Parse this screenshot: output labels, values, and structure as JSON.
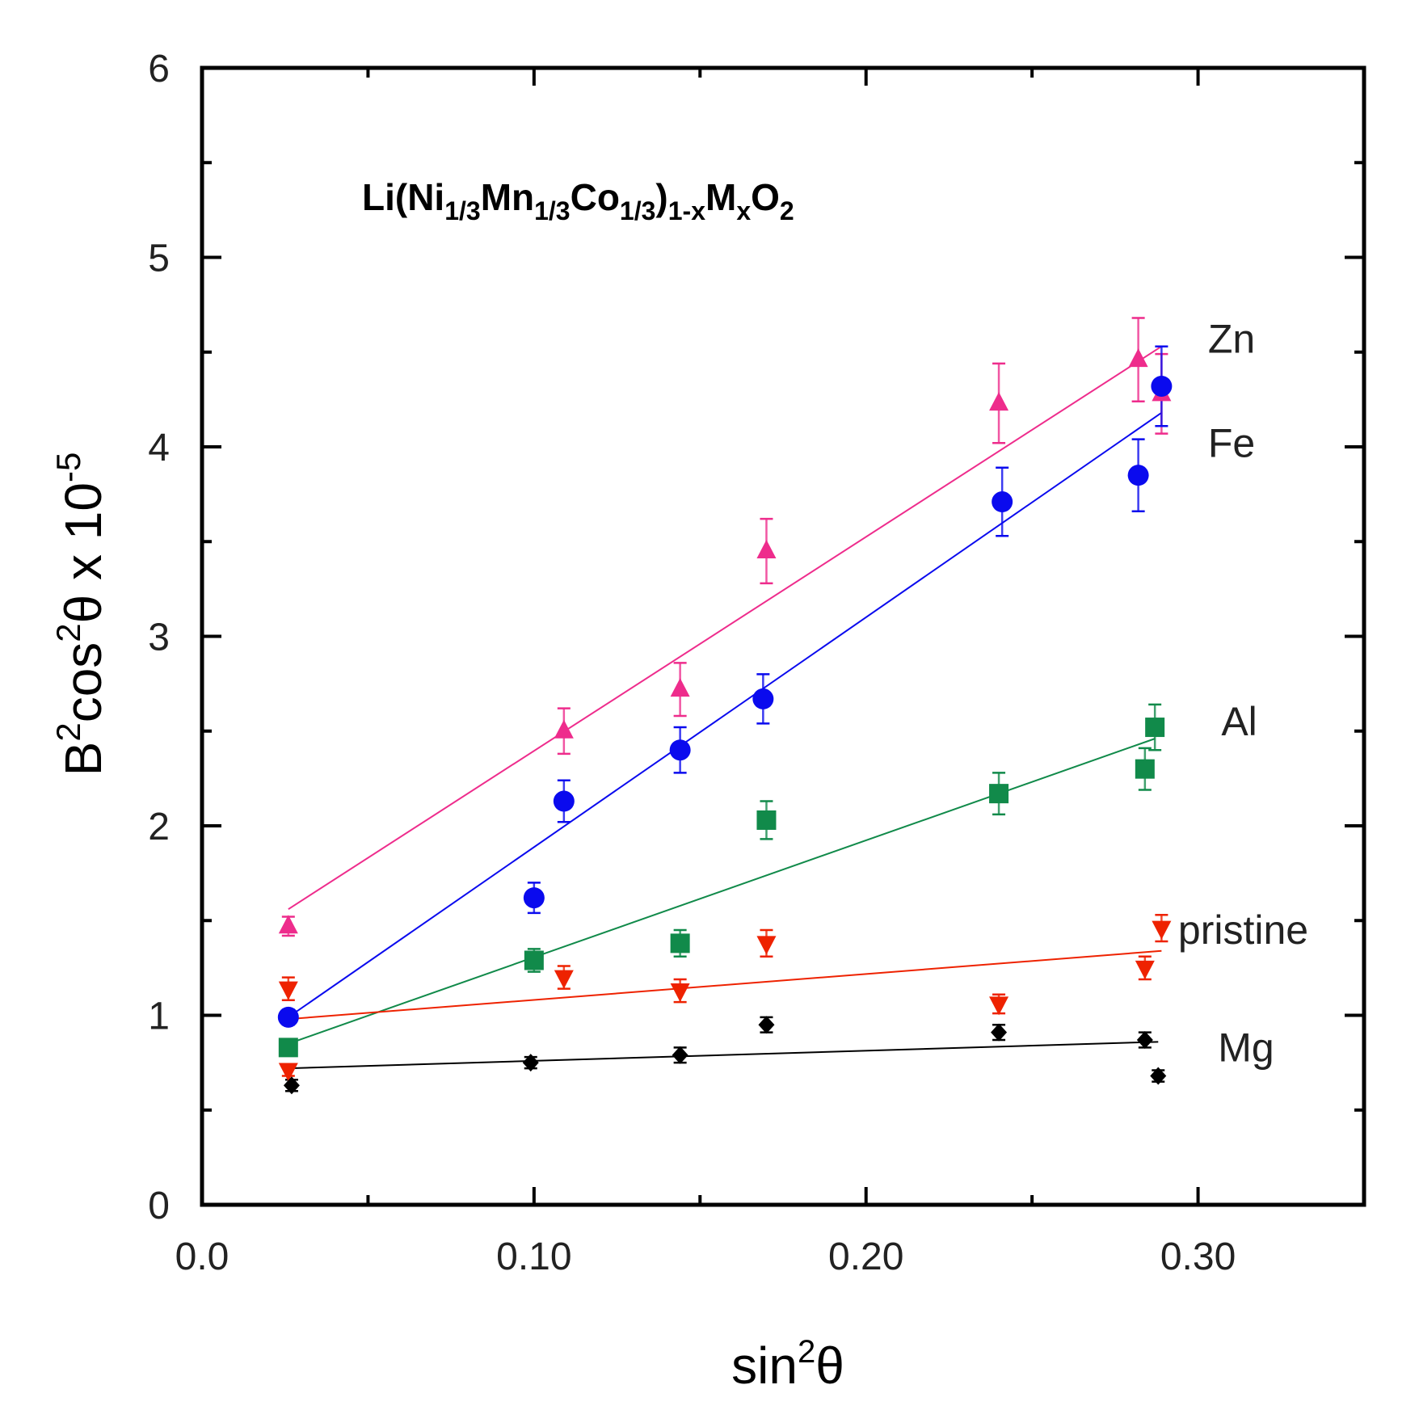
{
  "chart_data": {
    "type": "scatter",
    "title": {
      "parts": [
        {
          "text": "Li(Ni",
          "sub": false
        },
        {
          "text": "1/3",
          "sub": true
        },
        {
          "text": "Mn",
          "sub": false
        },
        {
          "text": "1/3",
          "sub": true
        },
        {
          "text": "Co",
          "sub": false
        },
        {
          "text": "1/3",
          "sub": true
        },
        {
          "text": ")",
          "sub": false
        },
        {
          "text": "1-x",
          "sub": true
        },
        {
          "text": "M",
          "sub": false
        },
        {
          "text": "x",
          "sub": true
        },
        {
          "text": "O",
          "sub": false
        },
        {
          "text": "2",
          "sub": true
        }
      ]
    },
    "xlabel": {
      "base": "sin",
      "sup": "2",
      "tail": "θ"
    },
    "ylabel": {
      "b": "B",
      "sup1": "2",
      "mid": "cos",
      "sup2": "2",
      "theta": "θ x 10",
      "sup3": "-5"
    },
    "xlim": [
      0.0,
      0.35
    ],
    "ylim": [
      0,
      6
    ],
    "x_ticks": [
      {
        "value": 0.0,
        "label": "0.0"
      },
      {
        "value": 0.1,
        "label": "0.10"
      },
      {
        "value": 0.2,
        "label": "0.20"
      },
      {
        "value": 0.3,
        "label": "0.30"
      }
    ],
    "x_minor_ticks": [
      0.05,
      0.15,
      0.25
    ],
    "y_ticks": [
      {
        "value": 0,
        "label": "0"
      },
      {
        "value": 1,
        "label": "1"
      },
      {
        "value": 2,
        "label": "2"
      },
      {
        "value": 3,
        "label": "3"
      },
      {
        "value": 4,
        "label": "4"
      },
      {
        "value": 5,
        "label": "5"
      },
      {
        "value": 6,
        "label": "6"
      }
    ],
    "y_minor_ticks": [
      0.5,
      1.5,
      2.5,
      3.5,
      4.5,
      5.5
    ],
    "series": [
      {
        "name": "Zn",
        "color": "#ee2c8c",
        "marker": "triangle-up",
        "points": [
          {
            "x": 0.026,
            "y": 1.47,
            "err": 0.05
          },
          {
            "x": 0.109,
            "y": 2.5,
            "err": 0.12
          },
          {
            "x": 0.144,
            "y": 2.72,
            "err": 0.14
          },
          {
            "x": 0.17,
            "y": 3.45,
            "err": 0.17
          },
          {
            "x": 0.24,
            "y": 4.23,
            "err": 0.21
          },
          {
            "x": 0.282,
            "y": 4.46,
            "err": 0.22
          },
          {
            "x": 0.289,
            "y": 4.28,
            "err": 0.21
          }
        ],
        "fit": [
          [
            0.026,
            1.56
          ],
          [
            0.289,
            4.53
          ]
        ]
      },
      {
        "name": "Fe",
        "color": "#0a0aee",
        "marker": "circle",
        "points": [
          {
            "x": 0.026,
            "y": 0.99,
            "err": 0.04
          },
          {
            "x": 0.1,
            "y": 1.62,
            "err": 0.08
          },
          {
            "x": 0.109,
            "y": 2.13,
            "err": 0.11
          },
          {
            "x": 0.144,
            "y": 2.4,
            "err": 0.12
          },
          {
            "x": 0.169,
            "y": 2.67,
            "err": 0.13
          },
          {
            "x": 0.241,
            "y": 3.71,
            "err": 0.18
          },
          {
            "x": 0.282,
            "y": 3.85,
            "err": 0.19
          },
          {
            "x": 0.289,
            "y": 4.32,
            "err": 0.21
          }
        ],
        "fit": [
          [
            0.026,
            0.99
          ],
          [
            0.289,
            4.18
          ]
        ]
      },
      {
        "name": "Al",
        "color": "#118a4a",
        "marker": "square",
        "points": [
          {
            "x": 0.026,
            "y": 0.83,
            "err": 0.04
          },
          {
            "x": 0.1,
            "y": 1.29,
            "err": 0.06
          },
          {
            "x": 0.144,
            "y": 1.38,
            "err": 0.07
          },
          {
            "x": 0.17,
            "y": 2.03,
            "err": 0.1
          },
          {
            "x": 0.24,
            "y": 2.17,
            "err": 0.11
          },
          {
            "x": 0.284,
            "y": 2.3,
            "err": 0.11
          },
          {
            "x": 0.287,
            "y": 2.52,
            "err": 0.12
          }
        ],
        "fit": [
          [
            0.026,
            0.85
          ],
          [
            0.287,
            2.46
          ]
        ]
      },
      {
        "name": "pristine",
        "color": "#ee2200",
        "marker": "triangle-down",
        "points": [
          {
            "x": 0.026,
            "y": 0.71,
            "err": 0.03
          },
          {
            "x": 0.026,
            "y": 1.14,
            "err": 0.06
          },
          {
            "x": 0.109,
            "y": 1.2,
            "err": 0.06
          },
          {
            "x": 0.144,
            "y": 1.13,
            "err": 0.06
          },
          {
            "x": 0.17,
            "y": 1.38,
            "err": 0.07
          },
          {
            "x": 0.24,
            "y": 1.06,
            "err": 0.05
          },
          {
            "x": 0.284,
            "y": 1.25,
            "err": 0.06
          },
          {
            "x": 0.289,
            "y": 1.46,
            "err": 0.07
          }
        ],
        "fit": [
          [
            0.026,
            0.98
          ],
          [
            0.289,
            1.34
          ]
        ]
      },
      {
        "name": "Mg",
        "color": "#000000",
        "marker": "diamond",
        "points": [
          {
            "x": 0.027,
            "y": 0.63,
            "err": 0.03
          },
          {
            "x": 0.099,
            "y": 0.75,
            "err": 0.03
          },
          {
            "x": 0.144,
            "y": 0.79,
            "err": 0.04
          },
          {
            "x": 0.17,
            "y": 0.95,
            "err": 0.04
          },
          {
            "x": 0.24,
            "y": 0.91,
            "err": 0.04
          },
          {
            "x": 0.284,
            "y": 0.87,
            "err": 0.04
          },
          {
            "x": 0.288,
            "y": 0.68,
            "err": 0.03
          }
        ],
        "fit": [
          [
            0.026,
            0.72
          ],
          [
            0.288,
            0.86
          ]
        ]
      }
    ],
    "labels": [
      {
        "series": "Zn",
        "text": "Zn",
        "x": 0.303,
        "y": 4.57
      },
      {
        "series": "Fe",
        "text": "Fe",
        "x": 0.303,
        "y": 4.02
      },
      {
        "series": "Al",
        "text": "Al",
        "x": 0.307,
        "y": 2.55
      },
      {
        "series": "pristine",
        "text": "pristine",
        "x": 0.294,
        "y": 1.45
      },
      {
        "series": "Mg",
        "text": "Mg",
        "x": 0.306,
        "y": 0.83
      }
    ]
  }
}
